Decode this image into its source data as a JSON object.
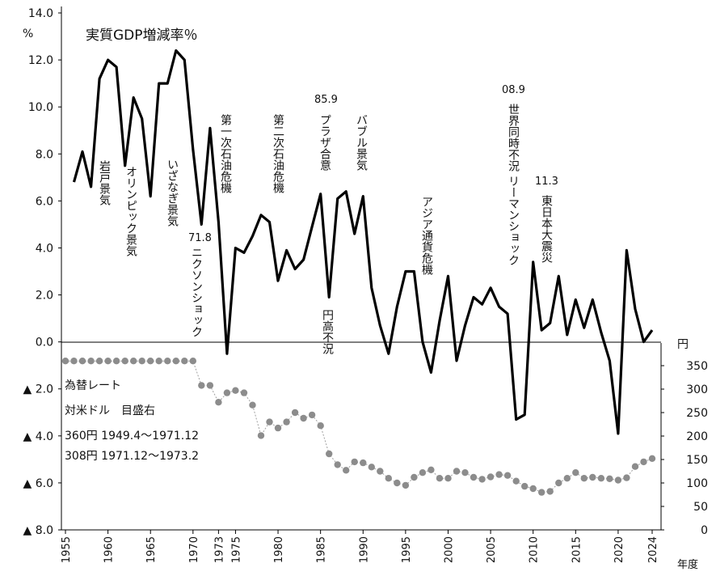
{
  "chart_data": {
    "type": "line",
    "title": "実質GDP増減率％",
    "left_unit": "%",
    "right_unit": "円",
    "xlabel": "年度",
    "left_ylim": [
      -8,
      14
    ],
    "right_ylim": [
      0,
      350
    ],
    "x_tick_labels": [
      {
        "x": 1955,
        "label": "1955"
      },
      {
        "x": 1960,
        "label": "1960"
      },
      {
        "x": 1965,
        "label": "1965"
      },
      {
        "x": 1970,
        "label": "1970"
      },
      {
        "x": 1973,
        "label": "1973"
      },
      {
        "x": 1975,
        "label": "1975"
      },
      {
        "x": 1980,
        "label": "1980"
      },
      {
        "x": 1985,
        "label": "1985"
      },
      {
        "x": 1990,
        "label": "1990"
      },
      {
        "x": 1995,
        "label": "1995"
      },
      {
        "x": 2000,
        "label": "2000"
      },
      {
        "x": 2005,
        "label": "2005"
      },
      {
        "x": 2010,
        "label": "2010"
      },
      {
        "x": 2015,
        "label": "2015"
      },
      {
        "x": 2020,
        "label": "2020"
      },
      {
        "x": 2024,
        "label": "2024"
      }
    ],
    "left_tick_labels": [
      {
        "v": 14,
        "label": "14.0"
      },
      {
        "v": 12,
        "label": "12.0"
      },
      {
        "v": 10,
        "label": "10.0"
      },
      {
        "v": 8,
        "label": "8.0"
      },
      {
        "v": 6,
        "label": "6.0"
      },
      {
        "v": 4,
        "label": "4.0"
      },
      {
        "v": 2,
        "label": "2.0"
      },
      {
        "v": 0,
        "label": "0.0"
      },
      {
        "v": -2,
        "label": "▲ 2.0"
      },
      {
        "v": -4,
        "label": "▲ 4.0"
      },
      {
        "v": -6,
        "label": "▲ 6.0"
      },
      {
        "v": -8,
        "label": "▲ 8.0"
      }
    ],
    "right_tick_labels": [
      {
        "v": 350,
        "label": "350"
      },
      {
        "v": 300,
        "label": "300"
      },
      {
        "v": 250,
        "label": "250"
      },
      {
        "v": 200,
        "label": "200"
      },
      {
        "v": 150,
        "label": "150"
      },
      {
        "v": 100,
        "label": "100"
      },
      {
        "v": 50,
        "label": "50"
      },
      {
        "v": 0,
        "label": "0"
      }
    ],
    "gdp_series": {
      "x": [
        1956,
        1957,
        1958,
        1959,
        1960,
        1961,
        1962,
        1963,
        1964,
        1965,
        1966,
        1967,
        1968,
        1969,
        1970,
        1971,
        1972,
        1973,
        1974,
        1975,
        1976,
        1977,
        1978,
        1979,
        1980,
        1981,
        1982,
        1983,
        1984,
        1985,
        1986,
        1987,
        1988,
        1989,
        1990,
        1991,
        1992,
        1993,
        1994,
        1995,
        1996,
        1997,
        1998,
        1999,
        2000,
        2001,
        2002,
        2003,
        2004,
        2005,
        2006,
        2007,
        2008,
        2009,
        2010,
        2011,
        2012,
        2013,
        2014,
        2015,
        2016,
        2017,
        2018,
        2019,
        2020,
        2021,
        2022,
        2023,
        2024
      ],
      "y": [
        6.8,
        8.1,
        6.6,
        11.2,
        12.0,
        11.7,
        7.5,
        10.4,
        9.5,
        6.2,
        11.0,
        11.0,
        12.4,
        12.0,
        8.2,
        5.0,
        9.1,
        5.1,
        -0.5,
        4.0,
        3.8,
        4.5,
        5.4,
        5.1,
        2.6,
        3.9,
        3.1,
        3.5,
        4.9,
        6.3,
        1.9,
        6.1,
        6.4,
        4.6,
        6.2,
        2.3,
        0.7,
        -0.5,
        1.5,
        3.0,
        3.0,
        0.0,
        -1.3,
        0.9,
        2.8,
        -0.8,
        0.7,
        1.9,
        1.6,
        2.3,
        1.5,
        1.2,
        -3.3,
        -3.1,
        3.4,
        0.5,
        0.8,
        2.8,
        0.3,
        1.8,
        0.6,
        1.8,
        0.4,
        -0.8,
        -3.9,
        3.9,
        1.4,
        0.0,
        0.5
      ]
    },
    "fx_series": {
      "x": [
        1955,
        1956,
        1957,
        1958,
        1959,
        1960,
        1961,
        1962,
        1963,
        1964,
        1965,
        1966,
        1967,
        1968,
        1969,
        1970,
        1971,
        1972,
        1973,
        1974,
        1975,
        1976,
        1977,
        1978,
        1979,
        1980,
        1981,
        1982,
        1983,
        1984,
        1985,
        1986,
        1987,
        1988,
        1989,
        1990,
        1991,
        1992,
        1993,
        1994,
        1995,
        1996,
        1997,
        1998,
        1999,
        2000,
        2001,
        2002,
        2003,
        2004,
        2005,
        2006,
        2007,
        2008,
        2009,
        2010,
        2011,
        2012,
        2013,
        2014,
        2015,
        2016,
        2017,
        2018,
        2019,
        2020,
        2021,
        2022,
        2023,
        2024
      ],
      "y": [
        360,
        360,
        360,
        360,
        360,
        360,
        360,
        360,
        360,
        360,
        360,
        360,
        360,
        360,
        360,
        360,
        308,
        308,
        272,
        292,
        297,
        292,
        266,
        201,
        230,
        217,
        230,
        250,
        238,
        245,
        222,
        162,
        139,
        127,
        145,
        143,
        134,
        125,
        110,
        100,
        95,
        112,
        122,
        128,
        110,
        110,
        125,
        122,
        112,
        108,
        113,
        118,
        116,
        104,
        93,
        88,
        80,
        82,
        100,
        110,
        122,
        110,
        112,
        110,
        109,
        106,
        111,
        135,
        145,
        152
      ]
    },
    "annotations": {
      "iwato": "岩戸景気",
      "olympic": "オリンピック景気",
      "izanagi": "いざなぎ景気",
      "nixon_year": "71.8",
      "nixon": "ニクソンショック",
      "oil1": "第一次石油危機",
      "oil2": "第二次石油危機",
      "plaza_year": "85.9",
      "plaza": "プラザ合意",
      "endaka": "円高不況",
      "bubble": "バブル景気",
      "asia": "アジア通貨危機",
      "lehman_year": "08.9",
      "lehman": "世界同時不況 リーマンショック",
      "quake_year": "11.3",
      "quake": "東日本大震災"
    },
    "fx_legend": {
      "line1": "為替レート",
      "line2": "対米ドル　目盛右",
      "line3": "360円 1949.4～1971.12",
      "line4": "308円 1971.12～1973.2"
    },
    "colors": {
      "gdp_line": "#000000",
      "fx_marker": "#8c8c8c",
      "fx_line": "#a0a0a0",
      "axis": "#000000"
    }
  }
}
